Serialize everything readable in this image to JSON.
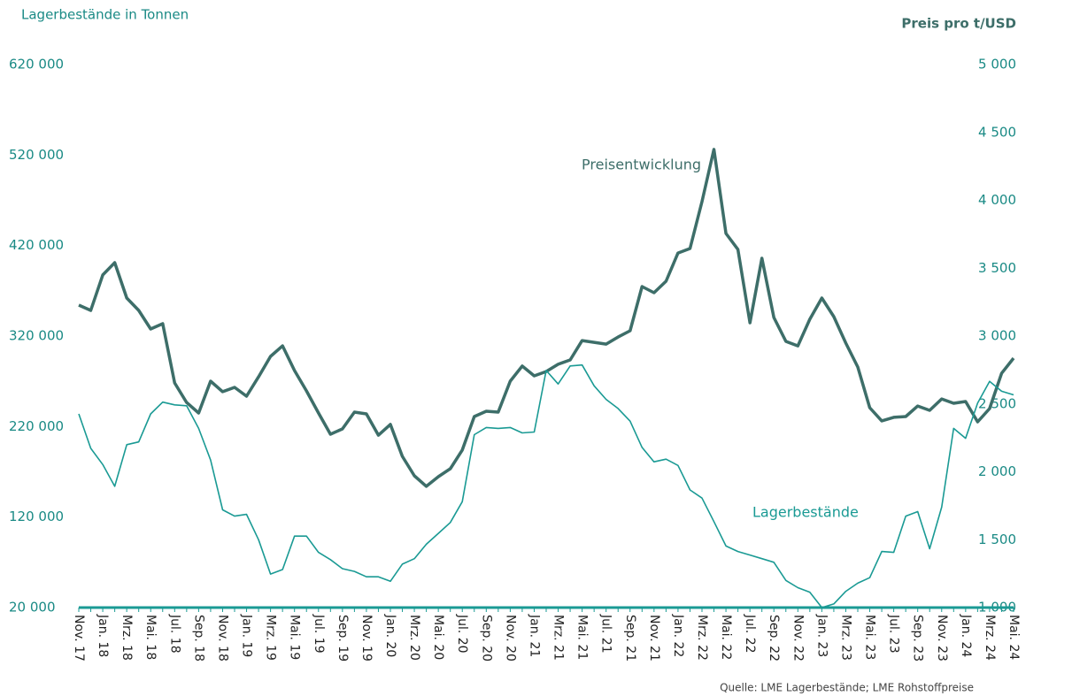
{
  "chart_data": {
    "type": "line",
    "y_label": "Lagerbestände in Tonnen",
    "y2_label": "Preis pro t/USD",
    "source": "Quelle: LME Lagerbestände; LME Rohstoffpreise",
    "categories": [
      "Nov. 17",
      null,
      "Jan. 18",
      null,
      "Mrz. 18",
      null,
      "Mai. 18",
      null,
      "Jul. 18",
      null,
      "Sep. 18",
      null,
      "Nov. 18",
      null,
      "Jan. 19",
      null,
      "Mrz. 19",
      null,
      "Mai. 19",
      null,
      "Jul. 19",
      null,
      "Sep. 19",
      null,
      "Nov. 19",
      null,
      "Jan. 20",
      null,
      "Mrz. 20",
      null,
      "Mai. 20",
      null,
      "Jul. 20",
      null,
      "Sep. 20",
      null,
      "Nov. 20",
      null,
      "Jan. 21",
      null,
      "Mrz. 21",
      null,
      "Mai. 21",
      null,
      "Jul. 21",
      null,
      "Sep. 21",
      null,
      "Nov. 21",
      null,
      "Jan. 22",
      null,
      "Mrz. 22",
      null,
      "Mai. 22",
      null,
      "Jul. 22",
      null,
      "Sep. 22",
      null,
      "Nov. 22",
      null,
      "Jan. 23",
      null,
      "Mrz. 23",
      null,
      "Mai. 23",
      null,
      "Jul. 23",
      null,
      "Sep. 23",
      null,
      "Nov. 23",
      null,
      "Jan. 24",
      null,
      "Mrz. 24",
      null,
      "Mai. 24"
    ],
    "series": [
      {
        "name": "Preisentwicklung",
        "color": "#3d6e69",
        "axis": "y2",
        "values": [
          3228,
          3189,
          3450,
          3541,
          3280,
          3189,
          3052,
          3091,
          2655,
          2511,
          2433,
          2668,
          2590,
          2622,
          2557,
          2700,
          2850,
          2928,
          2746,
          2596,
          2433,
          2277,
          2316,
          2440,
          2427,
          2270,
          2349,
          2114,
          1971,
          1893,
          1964,
          2023,
          2160,
          2407,
          2446,
          2440,
          2668,
          2779,
          2707,
          2739,
          2792,
          2824,
          2967,
          2954,
          2941,
          2993,
          3039,
          3365,
          3319,
          3404,
          3612,
          3645,
          3990,
          4375,
          3756,
          3638,
          3098,
          3573,
          3137,
          2961,
          2928,
          3124,
          3280,
          3143,
          2948,
          2772,
          2472,
          2375,
          2401,
          2407,
          2485,
          2453,
          2537,
          2505,
          2518,
          2368,
          2466,
          2726,
          2837
        ]
      },
      {
        "name": "Lagerbestände",
        "color": "#1a9a94",
        "values": [
          234000,
          196000,
          178000,
          154000,
          200000,
          203000,
          234000,
          247000,
          244000,
          243000,
          218000,
          183000,
          128000,
          121000,
          123000,
          95000,
          57000,
          62000,
          99000,
          99000,
          81000,
          73000,
          63000,
          60000,
          54000,
          54000,
          49000,
          68000,
          74000,
          90000,
          102000,
          114000,
          137000,
          211000,
          219000,
          218000,
          219000,
          213000,
          214000,
          282000,
          267000,
          287000,
          288000,
          265000,
          250000,
          240000,
          226000,
          197000,
          181000,
          184000,
          177000,
          150000,
          141000,
          115000,
          88000,
          82000,
          78000,
          74000,
          70000,
          50000,
          42000,
          37000,
          20000,
          24000,
          38000,
          47000,
          53000,
          82000,
          81000,
          121000,
          126000,
          85000,
          131000,
          218000,
          207000,
          246000,
          270000,
          259000,
          255000
        ]
      }
    ],
    "ylim": [
      20000,
      620000
    ],
    "yticks": [
      {
        "value": 20000,
        "label": "20 000"
      },
      {
        "value": 120000,
        "label": "120 000"
      },
      {
        "value": 220000,
        "label": "220 000"
      },
      {
        "value": 320000,
        "label": "320 000"
      },
      {
        "value": 420000,
        "label": "420 000"
      },
      {
        "value": 520000,
        "label": "520 000"
      },
      {
        "value": 620000,
        "label": "620 000"
      }
    ],
    "y2lim": [
      1000,
      5000
    ],
    "y2ticks": [
      {
        "value": 1000,
        "label": "1 000"
      },
      {
        "value": 1500,
        "label": "1 500"
      },
      {
        "value": 2000,
        "label": "2 000"
      },
      {
        "value": 2500,
        "label": "2 500"
      },
      {
        "value": 3000,
        "label": "3 000"
      },
      {
        "value": 3500,
        "label": "3 500"
      },
      {
        "value": 4000,
        "label": "4 000"
      },
      {
        "value": 4500,
        "label": "4 500"
      },
      {
        "value": 5000,
        "label": "5 000"
      }
    ],
    "grid": false
  }
}
